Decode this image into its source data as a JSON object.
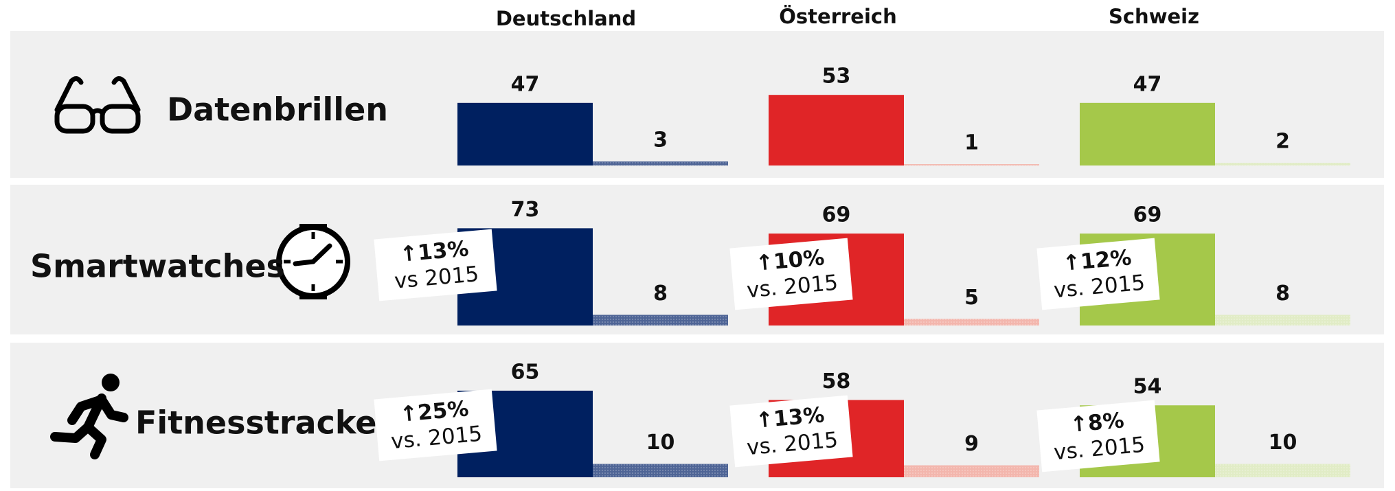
{
  "chart_data": {
    "type": "bar",
    "categories": [
      "Datenbrillen",
      "Smartwatches",
      "Fitnesstracker"
    ],
    "series": [
      {
        "name": "Deutschland",
        "color": "#002060",
        "secondary_color": "#4f6596",
        "values": [
          47,
          73,
          65
        ],
        "secondary_values": [
          3,
          8,
          10
        ],
        "annotations": [
          null,
          {
            "change": "↑13%",
            "note": "vs 2015"
          },
          {
            "change": "↑25%",
            "note": "vs. 2015"
          }
        ]
      },
      {
        "name": "Österreich",
        "color": "#e02527",
        "secondary_color": "#f3b6ad",
        "values": [
          53,
          69,
          58
        ],
        "secondary_values": [
          1,
          5,
          9
        ],
        "annotations": [
          null,
          {
            "change": "↑10%",
            "note": "vs. 2015"
          },
          {
            "change": "↑13%",
            "note": "vs. 2015"
          }
        ]
      },
      {
        "name": "Schweiz",
        "color": "#a5c84a",
        "secondary_color": "#e1ecc6",
        "values": [
          47,
          69,
          54
        ],
        "secondary_values": [
          2,
          8,
          10
        ],
        "annotations": [
          null,
          {
            "change": "↑12%",
            "note": "vs. 2015"
          },
          {
            "change": "↑8%",
            "note": "vs. 2015"
          }
        ]
      }
    ]
  }
}
